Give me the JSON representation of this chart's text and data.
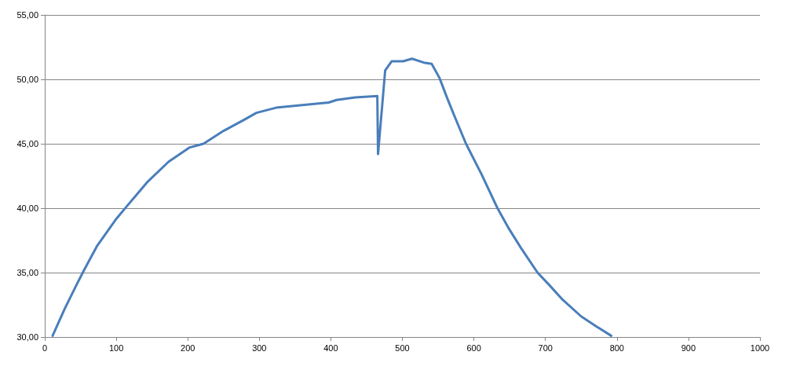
{
  "chart_data": {
    "type": "line",
    "line_style": "solid",
    "marker": "none",
    "grid": "y",
    "x": [
      11,
      28,
      44,
      55,
      73.5,
      99,
      114,
      143,
      173,
      202,
      222,
      250,
      280,
      296,
      323.5,
      360,
      397,
      408,
      434,
      465,
      466,
      476,
      485,
      501,
      513.5,
      530,
      541,
      552,
      563,
      574,
      589,
      611,
      633,
      648,
      666,
      689,
      706,
      724,
      750,
      772,
      792
    ],
    "series": [
      {
        "color": "#4a7ebb",
        "values": [
          30.1,
          32.2,
          34.0,
          35.2,
          37.1,
          39.1,
          40.1,
          42.0,
          43.6,
          44.7,
          45.0,
          46.0,
          46.9,
          47.4,
          47.8,
          48.0,
          48.2,
          48.4,
          48.6,
          48.7,
          44.2,
          50.7,
          51.4,
          51.4,
          51.6,
          51.3,
          51.2,
          50.1,
          48.5,
          47.0,
          45.0,
          42.6,
          40.0,
          38.5,
          36.9,
          35.0,
          34.0,
          32.9,
          31.6,
          30.8,
          30.1
        ]
      }
    ],
    "xlim": [
      0,
      1000
    ],
    "xticks": [
      0,
      100,
      200,
      300,
      400,
      500,
      600,
      700,
      800,
      900,
      1000
    ],
    "ylim": [
      30,
      55
    ],
    "yticks": [
      {
        "value": 30,
        "label": "30,00"
      },
      {
        "value": 35,
        "label": "35,00"
      },
      {
        "value": 40,
        "label": "40,00"
      },
      {
        "value": 45,
        "label": "45,00"
      },
      {
        "value": 50,
        "label": "50,00"
      },
      {
        "value": 55,
        "label": "55,00"
      }
    ]
  }
}
